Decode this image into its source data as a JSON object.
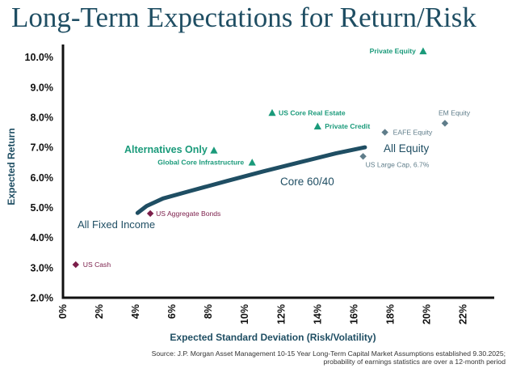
{
  "title": "Long-Term Expectations for Return/Risk",
  "source_line1": "Source: J.P. Morgan Asset Management 10-15 Year Long-Term Capital Market Assumptions established 9.30.2025;",
  "source_line2": "probability of earnings statistics are over a 12-month period",
  "chart_data": {
    "type": "scatter",
    "title": "Long-Term Expectations for Return/Risk",
    "xlabel": "Expected Standard Deviation (Risk/Volatility)",
    "ylabel": "Expected Return",
    "xlim": [
      0,
      23
    ],
    "ylim": [
      2.0,
      10.5
    ],
    "x_ticks": [
      0,
      2,
      4,
      6,
      8,
      10,
      12,
      14,
      16,
      18,
      20,
      22
    ],
    "x_tick_labels": [
      "0%",
      "2%",
      "4%",
      "6%",
      "8%",
      "10%",
      "12%",
      "14%",
      "16%",
      "18%",
      "20%",
      "22%"
    ],
    "y_ticks": [
      2,
      3,
      4,
      5,
      6,
      7,
      8,
      9,
      10
    ],
    "y_tick_labels": [
      "2.0%",
      "3.0%",
      "4.0%",
      "5.0%",
      "6.0%",
      "7.0%",
      "8.0%",
      "9.0%",
      "10.0%"
    ],
    "grid": false,
    "colors": {
      "alternatives": "#1a9a7a",
      "equity": "#5f7d8a",
      "fixed_income": "#7b1e4a",
      "frontier": "#1f4e63",
      "axis": "#111111",
      "title": "#1f4e63"
    },
    "points": [
      {
        "label": "Private Equity",
        "x": 19.8,
        "y": 10.2,
        "group": "alternatives",
        "marker": "triangle"
      },
      {
        "label": "US Core Real Estate",
        "x": 11.5,
        "y": 8.15,
        "group": "alternatives",
        "marker": "triangle"
      },
      {
        "label": "Private Credit",
        "x": 14.0,
        "y": 7.7,
        "group": "alternatives",
        "marker": "triangle"
      },
      {
        "label": "Global Core Infrastructure",
        "x": 10.4,
        "y": 6.5,
        "group": "alternatives",
        "marker": "triangle"
      },
      {
        "label": "EM Equity",
        "x": 21.0,
        "y": 7.8,
        "group": "equity",
        "marker": "diamond"
      },
      {
        "label": "EAFE Equity",
        "x": 17.7,
        "y": 7.5,
        "group": "equity",
        "marker": "diamond"
      },
      {
        "label": "US Large Cap, 6.7%",
        "x": 16.5,
        "y": 6.7,
        "group": "equity",
        "marker": "diamond"
      },
      {
        "label": "US Aggregate Bonds",
        "x": 4.8,
        "y": 4.8,
        "group": "fixed_income",
        "marker": "diamond"
      },
      {
        "label": "US Cash",
        "x": 0.7,
        "y": 3.1,
        "group": "fixed_income",
        "marker": "diamond"
      }
    ],
    "alternatives_only_point": {
      "label": "Alternatives Only",
      "x": 8.3,
      "y": 6.9,
      "marker": "triangle"
    },
    "frontier": {
      "x": [
        4.1,
        4.6,
        5.5,
        7.0,
        9.0,
        11.0,
        13.0,
        15.0,
        16.6
      ],
      "y": [
        4.82,
        5.05,
        5.3,
        5.55,
        5.88,
        6.2,
        6.5,
        6.8,
        7.0
      ]
    },
    "frontier_labels": {
      "start": "All Fixed Income",
      "middle": "Core 60/40",
      "end": "All Equity"
    }
  }
}
